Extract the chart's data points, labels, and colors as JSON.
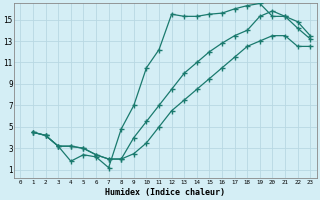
{
  "title": "",
  "xlabel": "Humidex (Indice chaleur)",
  "ylabel": "",
  "bg_color": "#d4eef5",
  "grid_color": "#b8d8e2",
  "line_color": "#1a7a6e",
  "x_ticks": [
    0,
    1,
    2,
    3,
    4,
    5,
    6,
    7,
    8,
    9,
    10,
    11,
    12,
    13,
    14,
    15,
    16,
    17,
    18,
    19,
    20,
    21,
    22,
    23
  ],
  "y_ticks": [
    1,
    3,
    5,
    7,
    9,
    11,
    13,
    15
  ],
  "xlim": [
    -0.5,
    23.5
  ],
  "ylim": [
    0.2,
    16.5
  ],
  "curve1_x": [
    1,
    2,
    3,
    4,
    5,
    6,
    7,
    8,
    9,
    10,
    11,
    12,
    13,
    14,
    15,
    16,
    17,
    18,
    19,
    20,
    21,
    22,
    23
  ],
  "curve1_y": [
    4.5,
    4.2,
    3.2,
    1.8,
    2.4,
    2.2,
    1.2,
    4.8,
    7.0,
    10.5,
    12.2,
    15.5,
    15.3,
    15.3,
    15.5,
    15.6,
    16.0,
    16.3,
    16.5,
    15.3,
    15.3,
    14.2,
    13.2
  ],
  "curve2_x": [
    1,
    2,
    3,
    4,
    5,
    6,
    7,
    8,
    9,
    10,
    11,
    12,
    13,
    14,
    15,
    16,
    17,
    18,
    19,
    20,
    21,
    22,
    23
  ],
  "curve2_y": [
    4.5,
    4.2,
    3.2,
    3.2,
    3.0,
    2.4,
    2.0,
    2.0,
    4.0,
    5.5,
    7.0,
    8.5,
    10.0,
    11.0,
    12.0,
    12.8,
    13.5,
    14.0,
    15.3,
    15.8,
    15.3,
    14.8,
    13.5
  ],
  "curve3_x": [
    1,
    2,
    3,
    4,
    5,
    6,
    7,
    8,
    9,
    10,
    11,
    12,
    13,
    14,
    15,
    16,
    17,
    18,
    19,
    20,
    21,
    22,
    23
  ],
  "curve3_y": [
    4.5,
    4.2,
    3.2,
    3.2,
    3.0,
    2.4,
    2.0,
    2.0,
    2.5,
    3.5,
    5.0,
    6.5,
    7.5,
    8.5,
    9.5,
    10.5,
    11.5,
    12.5,
    13.0,
    13.5,
    13.5,
    12.5,
    12.5
  ]
}
